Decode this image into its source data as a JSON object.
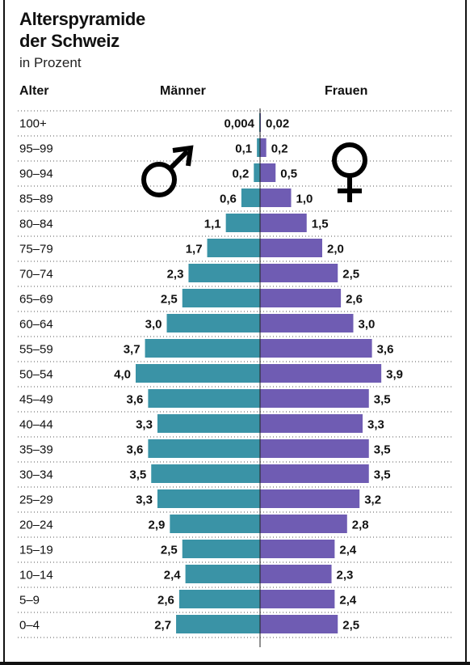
{
  "title_line1": "Alterspyramide",
  "title_line2": "der Schweiz",
  "subtitle": "in Prozent",
  "header": {
    "age": "Alter",
    "men": "Männer",
    "women": "Frauen"
  },
  "icons": {
    "men": "male-symbol-icon",
    "women": "female-symbol-icon"
  },
  "colors": {
    "men": "#3a93a6",
    "women": "#6f5cb3",
    "text": "#111111",
    "dots": "#555555"
  },
  "chart_data": {
    "type": "bar",
    "orientation": "horizontal-diverging",
    "categories": [
      "100+",
      "95–99",
      "90–94",
      "85–89",
      "80–84",
      "75–79",
      "70–74",
      "65–69",
      "60–64",
      "55–59",
      "50–54",
      "45–49",
      "40–44",
      "35–39",
      "30–34",
      "25–29",
      "20–24",
      "15–19",
      "10–14",
      "5–9",
      "0–4"
    ],
    "series": [
      {
        "name": "Männer",
        "values": [
          0.004,
          0.1,
          0.2,
          0.6,
          1.1,
          1.7,
          2.3,
          2.5,
          3.0,
          3.7,
          4.0,
          3.6,
          3.3,
          3.6,
          3.5,
          3.3,
          2.9,
          2.5,
          2.4,
          2.6,
          2.7
        ],
        "labels": [
          "0,004",
          "0,1",
          "0,2",
          "0,6",
          "1,1",
          "1,7",
          "2,3",
          "2,5",
          "3,0",
          "3,7",
          "4,0",
          "3,6",
          "3,3",
          "3,6",
          "3,5",
          "3,3",
          "2,9",
          "2,5",
          "2,4",
          "2,6",
          "2,7"
        ]
      },
      {
        "name": "Frauen",
        "values": [
          0.02,
          0.2,
          0.5,
          1.0,
          1.5,
          2.0,
          2.5,
          2.6,
          3.0,
          3.6,
          3.9,
          3.5,
          3.3,
          3.5,
          3.5,
          3.2,
          2.8,
          2.4,
          2.3,
          2.4,
          2.5
        ],
        "labels": [
          "0,02",
          "0,2",
          "0,5",
          "1,0",
          "1,5",
          "2,0",
          "2,5",
          "2,6",
          "3,0",
          "3,6",
          "3,9",
          "3,5",
          "3,3",
          "3,5",
          "3,5",
          "3,2",
          "2,8",
          "2,4",
          "2,3",
          "2,4",
          "2,5"
        ]
      }
    ],
    "title": "Alterspyramide der Schweiz",
    "subtitle": "in Prozent",
    "xlabel": "",
    "ylabel": "Alter",
    "grid": "dotted-rows"
  }
}
